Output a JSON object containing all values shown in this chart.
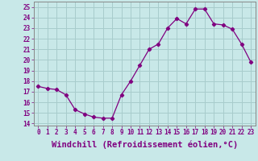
{
  "x": [
    0,
    1,
    2,
    3,
    4,
    5,
    6,
    7,
    8,
    9,
    10,
    11,
    12,
    13,
    14,
    15,
    16,
    17,
    18,
    19,
    20,
    21,
    22,
    23
  ],
  "y": [
    17.5,
    17.3,
    17.2,
    16.7,
    15.3,
    14.9,
    14.6,
    14.5,
    14.5,
    16.7,
    18.0,
    19.5,
    21.0,
    21.5,
    23.0,
    23.9,
    23.4,
    24.8,
    24.8,
    23.4,
    23.3,
    22.9,
    21.5,
    19.8
  ],
  "line_color": "#800080",
  "marker": "D",
  "marker_size": 2.2,
  "bg_color": "#c8e8e8",
  "grid_color": "#a8cccc",
  "xlabel": "Windchill (Refroidissement éolien,°C)",
  "xlabel_fontsize": 7.5,
  "ytick_labels": [
    "14",
    "15",
    "16",
    "17",
    "18",
    "19",
    "20",
    "21",
    "22",
    "23",
    "24",
    "25"
  ],
  "ylim": [
    13.8,
    25.5
  ],
  "xlim": [
    -0.5,
    23.5
  ],
  "yticks": [
    14,
    15,
    16,
    17,
    18,
    19,
    20,
    21,
    22,
    23,
    24,
    25
  ],
  "xtick_fontsize": 5.5,
  "ytick_fontsize": 5.5
}
